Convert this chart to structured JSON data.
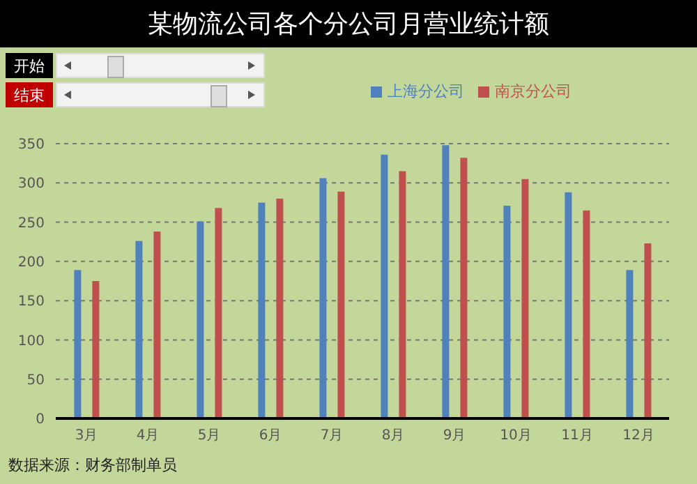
{
  "chart_data": {
    "type": "bar",
    "title": "某物流公司各个分公司月营业统计额",
    "categories": [
      "3月",
      "4月",
      "5月",
      "6月",
      "7月",
      "8月",
      "9月",
      "10月",
      "11月",
      "12月"
    ],
    "series": [
      {
        "name": "上海分公司",
        "color": "#4f81bd",
        "values": [
          189,
          226,
          251,
          275,
          306,
          336,
          348,
          271,
          288,
          189
        ]
      },
      {
        "name": "南京分公司",
        "color": "#c0504d",
        "values": [
          175,
          238,
          268,
          280,
          289,
          315,
          332,
          305,
          265,
          223
        ]
      }
    ],
    "ylim": [
      0,
      350
    ],
    "yticks": [
      0,
      50,
      100,
      150,
      200,
      250,
      300,
      350
    ],
    "grid": "y",
    "legend": "top right",
    "annotations": [
      "开始",
      "结束",
      "数据来源：财务部制单员"
    ]
  }
}
